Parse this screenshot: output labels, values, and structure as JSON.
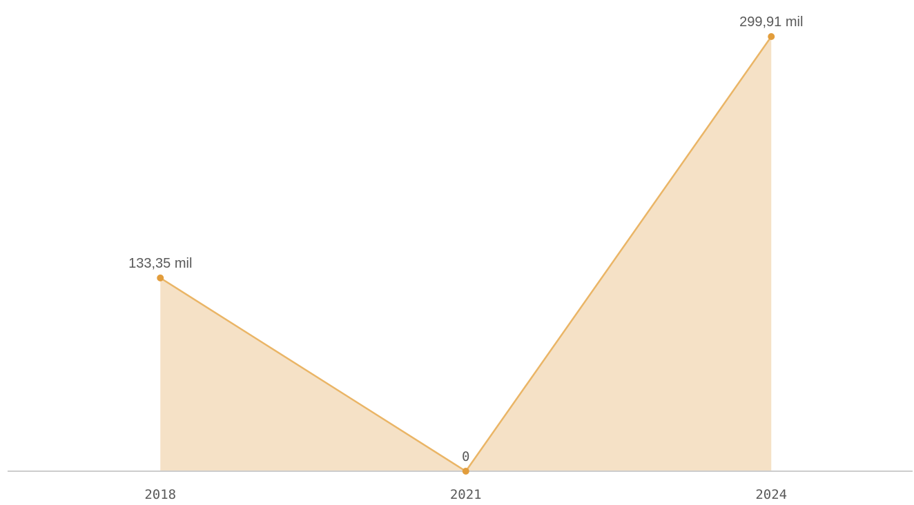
{
  "chart_data": {
    "type": "area",
    "categories": [
      "2018",
      "2021",
      "2024"
    ],
    "values": [
      133.35,
      0,
      299.91
    ],
    "value_labels": [
      "133,35 mil",
      "0",
      "299,91 mil"
    ],
    "color": "#eab566",
    "fill": "#f5e1c6",
    "marker_color": "#e29d3c"
  }
}
